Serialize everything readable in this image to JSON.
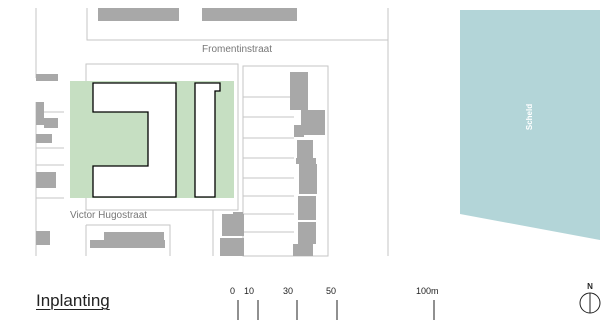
{
  "title": "Inplanting",
  "streets": {
    "top": "Fromentinstraat",
    "bottom": "Victor Hugostraat"
  },
  "water": {
    "name": "Scheld"
  },
  "scale_bar": {
    "ticks": [
      "0",
      "10",
      "30",
      "50",
      "100m"
    ]
  },
  "north_arrow": {
    "label": "N"
  },
  "colors": {
    "building": "#a8a8a8",
    "parcel_line": "#c6c6c6",
    "green_space": "#c6dfc2",
    "project_outline": "#000000",
    "water": "#b3d5d8"
  }
}
